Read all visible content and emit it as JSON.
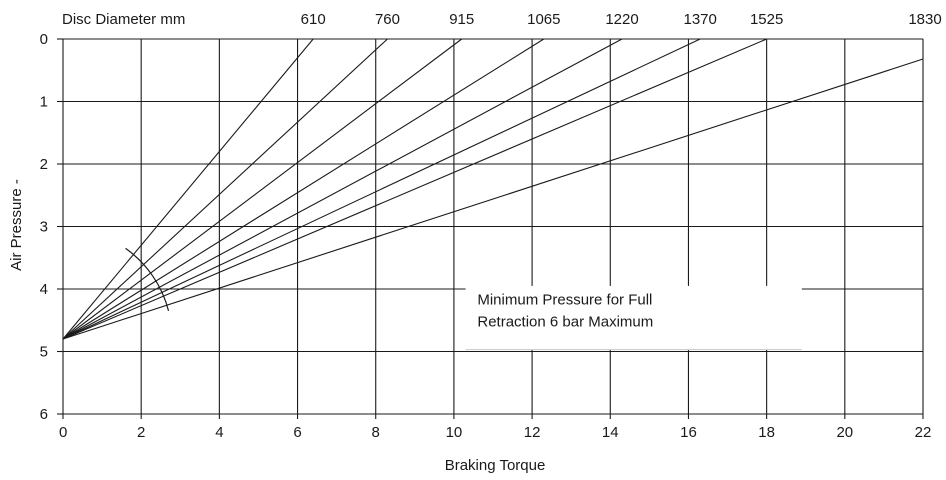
{
  "chart_data": {
    "type": "line",
    "xlabel": "Braking Torque",
    "ylabel": "Air Pressure -",
    "x_ticks": [
      "0",
      "2",
      "4",
      "6",
      "8",
      "10",
      "12",
      "14",
      "16",
      "18",
      "20",
      "22"
    ],
    "y_ticks": [
      "0",
      "1",
      "2",
      "3",
      "4",
      "5",
      "6"
    ],
    "xlim": [
      0,
      22
    ],
    "ylim": [
      0,
      6
    ],
    "y_inverted": true,
    "grid": true,
    "top_axis_title": "Disc Diameter mm",
    "origin": {
      "x": 0,
      "y": 4.8
    },
    "series": [
      {
        "name": "610",
        "end": {
          "x": 6.4,
          "y": 0
        }
      },
      {
        "name": "760",
        "end": {
          "x": 8.3,
          "y": 0
        }
      },
      {
        "name": "915",
        "end": {
          "x": 10.2,
          "y": 0
        }
      },
      {
        "name": "1065",
        "end": {
          "x": 12.3,
          "y": 0
        }
      },
      {
        "name": "1220",
        "end": {
          "x": 14.3,
          "y": 0
        }
      },
      {
        "name": "1370",
        "end": {
          "x": 16.3,
          "y": 0
        }
      },
      {
        "name": "1525",
        "end": {
          "x": 18.0,
          "y": 0
        }
      },
      {
        "name": "1830",
        "end": {
          "x": 22.0,
          "y": 0.32
        }
      }
    ],
    "arc": {
      "from": {
        "x": 1.6,
        "y": 3.35
      },
      "to": {
        "x": 2.7,
        "y": 4.35
      }
    },
    "annotation": [
      "Minimum Pressure for Full",
      "Retraction 6 bar Maximum"
    ]
  }
}
